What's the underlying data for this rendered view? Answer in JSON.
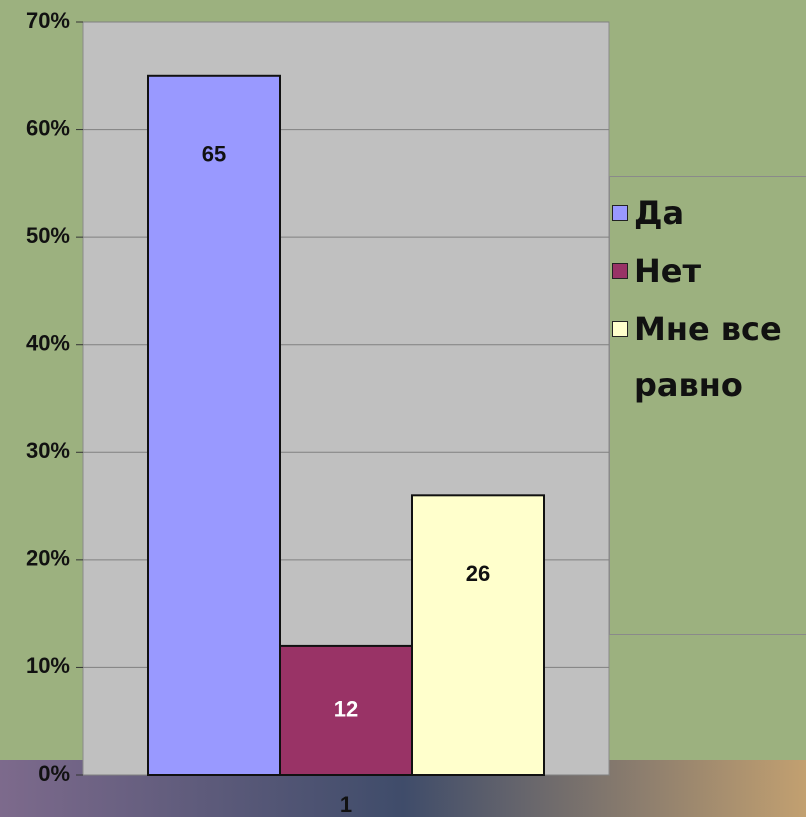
{
  "chart_data": {
    "type": "bar",
    "categories": [
      "1"
    ],
    "series": [
      {
        "name": "Да",
        "color": "#9999ff",
        "values": [
          65
        ]
      },
      {
        "name": "Нет",
        "color": "#993366",
        "values": [
          12
        ]
      },
      {
        "name": "Мне все равно",
        "color": "#ffffcc",
        "values": [
          26
        ]
      }
    ],
    "ylim": [
      0,
      70
    ],
    "yticks": [
      {
        "value": 0,
        "label": "0%"
      },
      {
        "value": 10,
        "label": "10%"
      },
      {
        "value": 20,
        "label": "20%"
      },
      {
        "value": 30,
        "label": "30%"
      },
      {
        "value": 40,
        "label": "40%"
      },
      {
        "value": 50,
        "label": "50%"
      },
      {
        "value": 60,
        "label": "60%"
      },
      {
        "value": 70,
        "label": "70%"
      }
    ],
    "grid": true,
    "legend": "right"
  }
}
